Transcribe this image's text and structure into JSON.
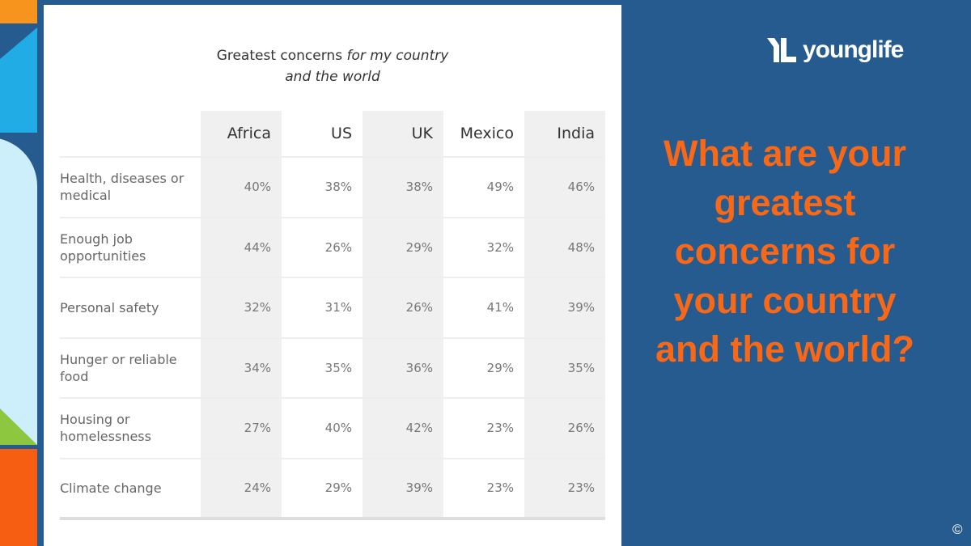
{
  "table": {
    "title_plain": "Greatest concerns ",
    "title_italic_1": "for my country",
    "title_italic_2": "and the world",
    "columns": [
      "Africa",
      "US",
      "UK",
      "Mexico",
      "India"
    ],
    "rows": [
      {
        "label": "Health, diseases or medical",
        "values": [
          "40%",
          "38%",
          "38%",
          "49%",
          "46%"
        ]
      },
      {
        "label": "Enough job opportunities",
        "values": [
          "44%",
          "26%",
          "29%",
          "32%",
          "48%"
        ]
      },
      {
        "label": "Personal safety",
        "values": [
          "32%",
          "31%",
          "26%",
          "41%",
          "39%"
        ]
      },
      {
        "label": "Hunger or reliable food",
        "values": [
          "34%",
          "35%",
          "36%",
          "29%",
          "35%"
        ]
      },
      {
        "label": "Housing or homelessness",
        "values": [
          "27%",
          "40%",
          "42%",
          "23%",
          "26%"
        ]
      },
      {
        "label": "Climate change",
        "values": [
          "24%",
          "29%",
          "39%",
          "23%",
          "23%"
        ]
      }
    ]
  },
  "brand": {
    "logo_mark": "YL",
    "logo_text": "younglife"
  },
  "question": "What are your greatest concerns for your country and the world?",
  "copyright": "©",
  "colors": {
    "background": "#255b8f",
    "question": "#f86816"
  }
}
